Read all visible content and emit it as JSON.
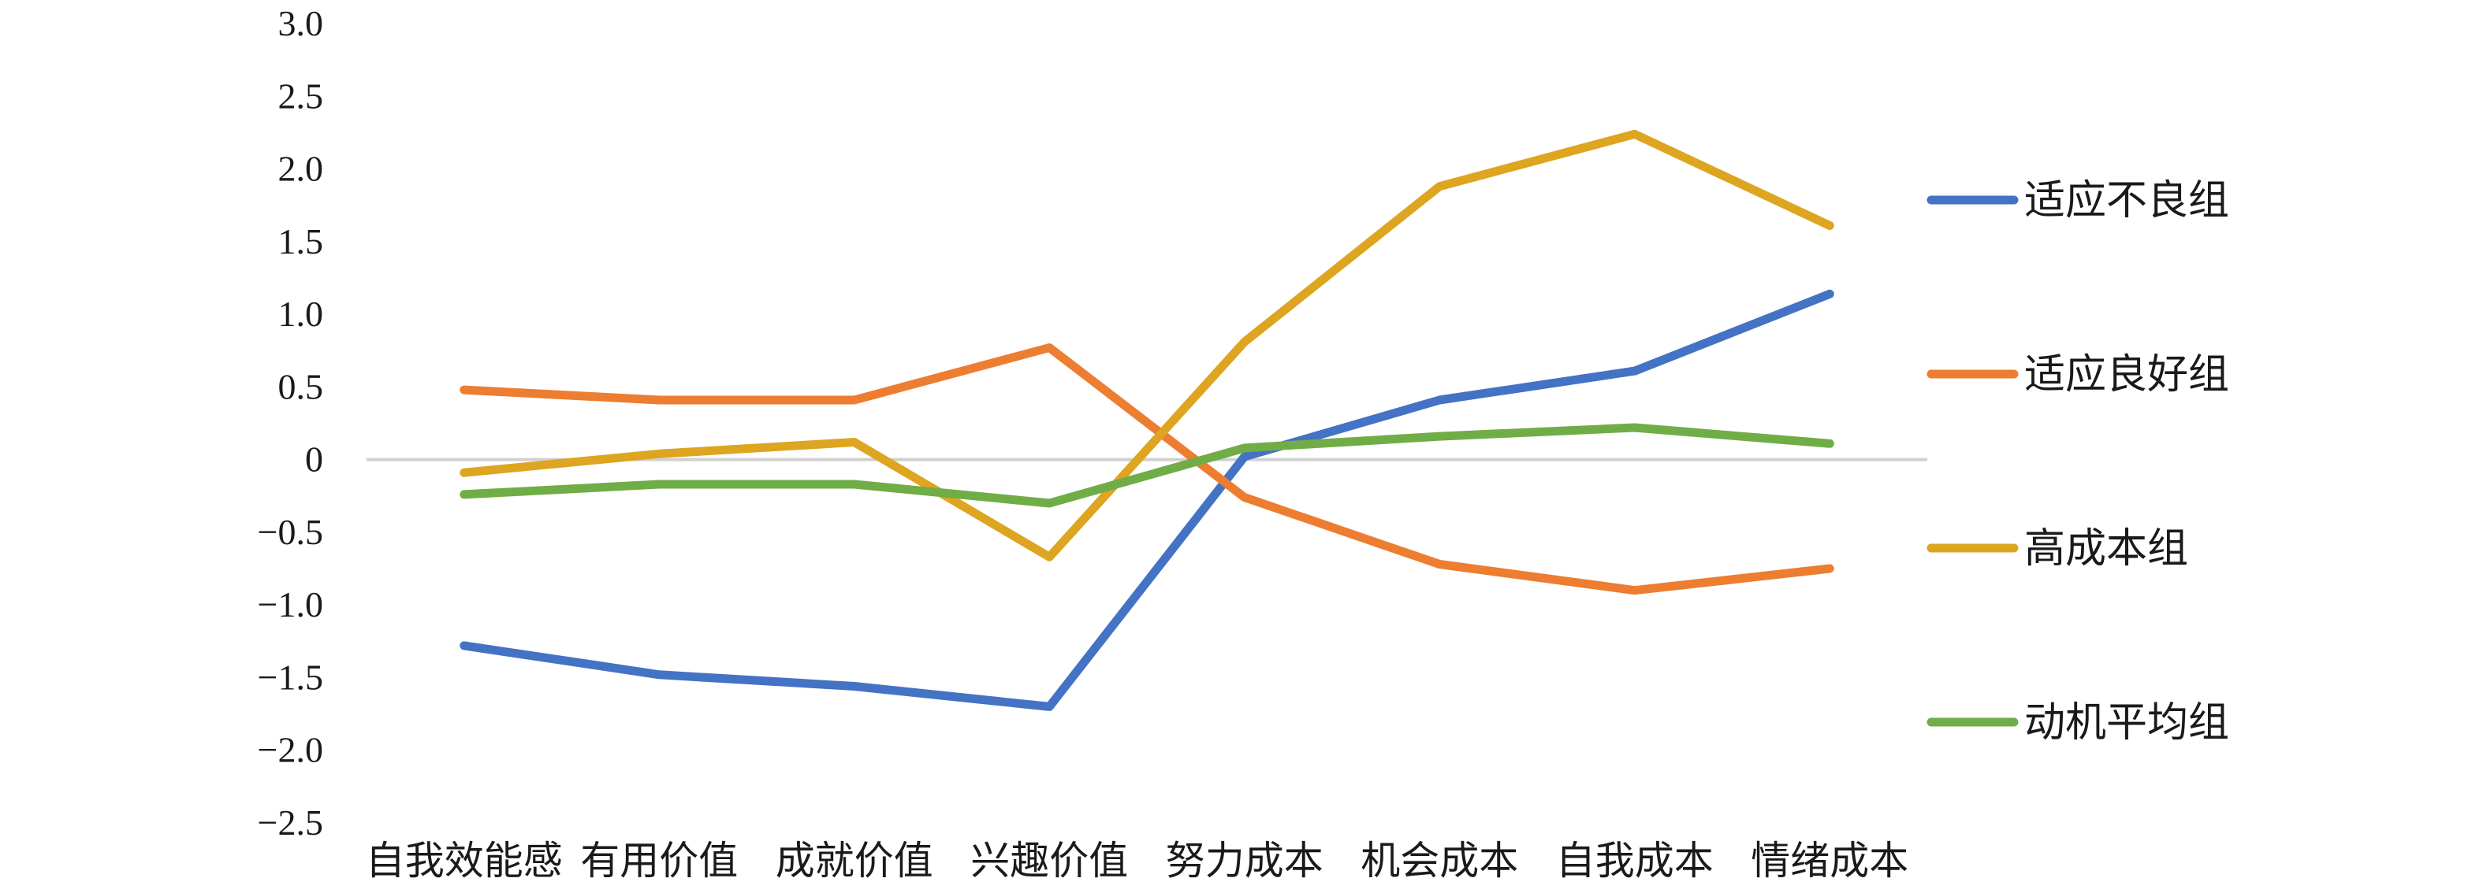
{
  "chart_data": {
    "type": "line",
    "categories": [
      "自我效能感",
      "有用价值",
      "成就价值",
      "兴趣价值",
      "努力成本",
      "机会成本",
      "自我成本",
      "情绪成本"
    ],
    "ylim": [
      -2.5,
      3.0
    ],
    "yticks": [
      3.0,
      2.5,
      2.0,
      1.5,
      1.0,
      0.5,
      0,
      -0.5,
      -1.0,
      -1.5,
      -2.0,
      -2.5
    ],
    "ytick_labels": [
      "3.0",
      "2.5",
      "2.0",
      "1.5",
      "1.0",
      "0.5",
      "0",
      "−0.5",
      "−1.0",
      "−1.5",
      "−2.0",
      "−2.5"
    ],
    "grid": false,
    "zero_line": true,
    "legend_position": "right",
    "series": [
      {
        "name": "适应不良组",
        "color": "#4472C4",
        "values": [
          -1.28,
          -1.48,
          -1.56,
          -1.7,
          0.02,
          0.41,
          0.61,
          1.14
        ]
      },
      {
        "name": "适应良好组",
        "color": "#ED7D31",
        "values": [
          0.48,
          0.41,
          0.41,
          0.77,
          -0.26,
          -0.72,
          -0.9,
          -0.75
        ]
      },
      {
        "name": "高成本组",
        "color": "#DDA520",
        "values": [
          -0.09,
          0.04,
          0.12,
          -0.67,
          0.81,
          1.88,
          2.24,
          1.61
        ]
      },
      {
        "name": "动机平均组",
        "color": "#70AD47",
        "values": [
          -0.24,
          -0.17,
          -0.17,
          -0.3,
          0.08,
          0.16,
          0.22,
          0.11
        ]
      }
    ]
  }
}
